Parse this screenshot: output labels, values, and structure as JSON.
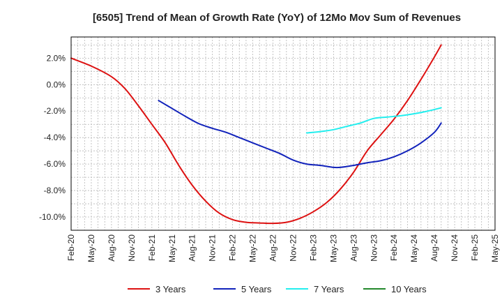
{
  "chart_data": {
    "type": "line",
    "title": "[6505]  Trend of Mean of Growth Rate (YoY) of 12Mo Mov Sum of Revenues",
    "xlabel": "",
    "ylabel": "",
    "x_ticks": [
      "Feb-20",
      "May-20",
      "Aug-20",
      "Nov-20",
      "Feb-21",
      "May-21",
      "Aug-21",
      "Nov-21",
      "Feb-22",
      "May-22",
      "Aug-22",
      "Nov-22",
      "Feb-23",
      "May-23",
      "Aug-23",
      "Nov-23",
      "Feb-24",
      "May-24",
      "Aug-24",
      "Nov-24",
      "Feb-25",
      "May-25"
    ],
    "y_ticks": [
      2.0,
      0.0,
      -2.0,
      -4.0,
      -6.0,
      -8.0,
      -10.0
    ],
    "y_tick_labels": [
      "2.0%",
      "0.0%",
      "-2.0%",
      "-4.0%",
      "-6.0%",
      "-8.0%",
      "-10.0%"
    ],
    "ylim": [
      -11.0,
      3.6
    ],
    "xlim": [
      0,
      63
    ],
    "grid": true,
    "legend_position": "bottom",
    "series": [
      {
        "name": "3 Years",
        "color": "#dd1111",
        "points": [
          [
            0,
            2.0
          ],
          [
            3,
            1.4
          ],
          [
            6,
            0.6
          ],
          [
            8,
            -0.3
          ],
          [
            10,
            -1.6
          ],
          [
            12,
            -3.0
          ],
          [
            14,
            -4.4
          ],
          [
            16,
            -6.1
          ],
          [
            18,
            -7.6
          ],
          [
            20,
            -8.8
          ],
          [
            22,
            -9.7
          ],
          [
            24,
            -10.2
          ],
          [
            26,
            -10.4
          ],
          [
            28,
            -10.45
          ],
          [
            30,
            -10.48
          ],
          [
            32,
            -10.4
          ],
          [
            34,
            -10.1
          ],
          [
            36,
            -9.6
          ],
          [
            38,
            -8.9
          ],
          [
            40,
            -7.9
          ],
          [
            42,
            -6.6
          ],
          [
            44,
            -5.0
          ],
          [
            46,
            -3.8
          ],
          [
            48,
            -2.6
          ],
          [
            50,
            -1.2
          ],
          [
            52,
            0.4
          ],
          [
            54,
            2.1
          ],
          [
            55,
            3.0
          ]
        ]
      },
      {
        "name": "5 Years",
        "color": "#1122bb",
        "points": [
          [
            13,
            -1.2
          ],
          [
            15,
            -1.8
          ],
          [
            17,
            -2.4
          ],
          [
            19,
            -2.95
          ],
          [
            21,
            -3.3
          ],
          [
            23,
            -3.6
          ],
          [
            25,
            -4.0
          ],
          [
            27,
            -4.4
          ],
          [
            29,
            -4.8
          ],
          [
            31,
            -5.2
          ],
          [
            33,
            -5.7
          ],
          [
            35,
            -6.0
          ],
          [
            37,
            -6.1
          ],
          [
            39,
            -6.25
          ],
          [
            40,
            -6.25
          ],
          [
            42,
            -6.1
          ],
          [
            44,
            -5.9
          ],
          [
            46,
            -5.75
          ],
          [
            48,
            -5.45
          ],
          [
            50,
            -5.0
          ],
          [
            52,
            -4.4
          ],
          [
            54,
            -3.6
          ],
          [
            55,
            -2.9
          ]
        ]
      },
      {
        "name": "7 Years",
        "color": "#22eeee",
        "points": [
          [
            35,
            -3.65
          ],
          [
            37,
            -3.55
          ],
          [
            39,
            -3.4
          ],
          [
            41,
            -3.15
          ],
          [
            43,
            -2.9
          ],
          [
            45,
            -2.55
          ],
          [
            47,
            -2.45
          ],
          [
            49,
            -2.35
          ],
          [
            51,
            -2.2
          ],
          [
            53,
            -2.0
          ],
          [
            55,
            -1.75
          ]
        ]
      },
      {
        "name": "10 Years",
        "color": "#22882b",
        "points": []
      }
    ]
  }
}
